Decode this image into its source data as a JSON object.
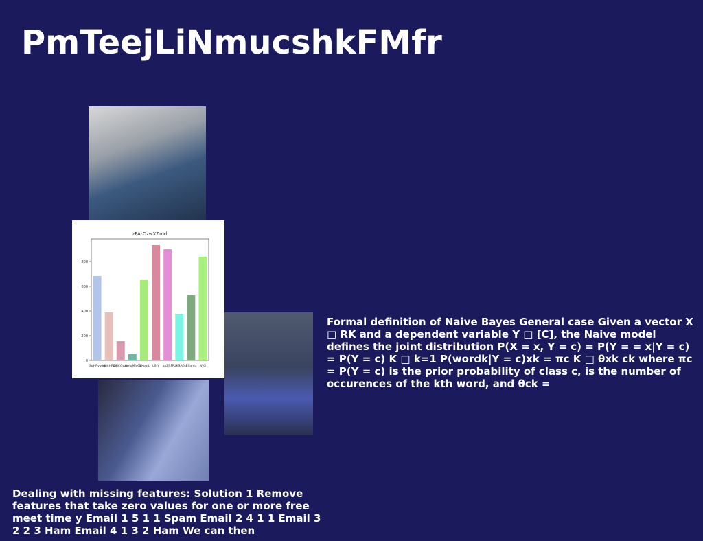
{
  "title": "PmTeejLiNmucshkFMfr",
  "chart_data": {
    "type": "bar",
    "title": "zPArDzwXZmd",
    "categories": [
      "SqHRvqfaj",
      "yqbhHPbjj",
      "QHCQpxe",
      "UtmoMhKO",
      "WKoqjL",
      "LfjrY",
      "qxZRR",
      "PUKSAOd",
      "SSamu",
      "JVKIi"
    ],
    "values": [
      683,
      389,
      156,
      50,
      650,
      933,
      900,
      378,
      528,
      839
    ],
    "colors": [
      "#b4c4e8",
      "#e6bfb8",
      "#d99aae",
      "#6fb8a8",
      "#a6ea7c",
      "#d88a9c",
      "#e48ed8",
      "#7cf4e4",
      "#7eaa7e",
      "#a8f07e"
    ],
    "ylim": [
      0,
      983
    ],
    "yticks": [
      0,
      200,
      400,
      600,
      800
    ]
  },
  "text_right": "Formal definition of Naive Bayes General case Given a vector X □ RK and a dependent variable Y □ [C], the Naive model defines the joint distribution P(X = x, Y = c) = P(Y = = x|Y = c) = P(Y = c) K □ k=1 P(wordk|Y = c)xk = πc K □ θxk ck where πc = P(Y = c) is the prior probability of class c, is the number of occurences of the kth word, and θck =",
  "text_bottom": "Dealing with missing features: Solution 1 Remove features that take zero values for one or more free meet time y Email 1 5 1 1 Spam Email 2 4 1 1 Email 3 2 2 3 Ham Email 4 1 3 2 Ham We can then"
}
